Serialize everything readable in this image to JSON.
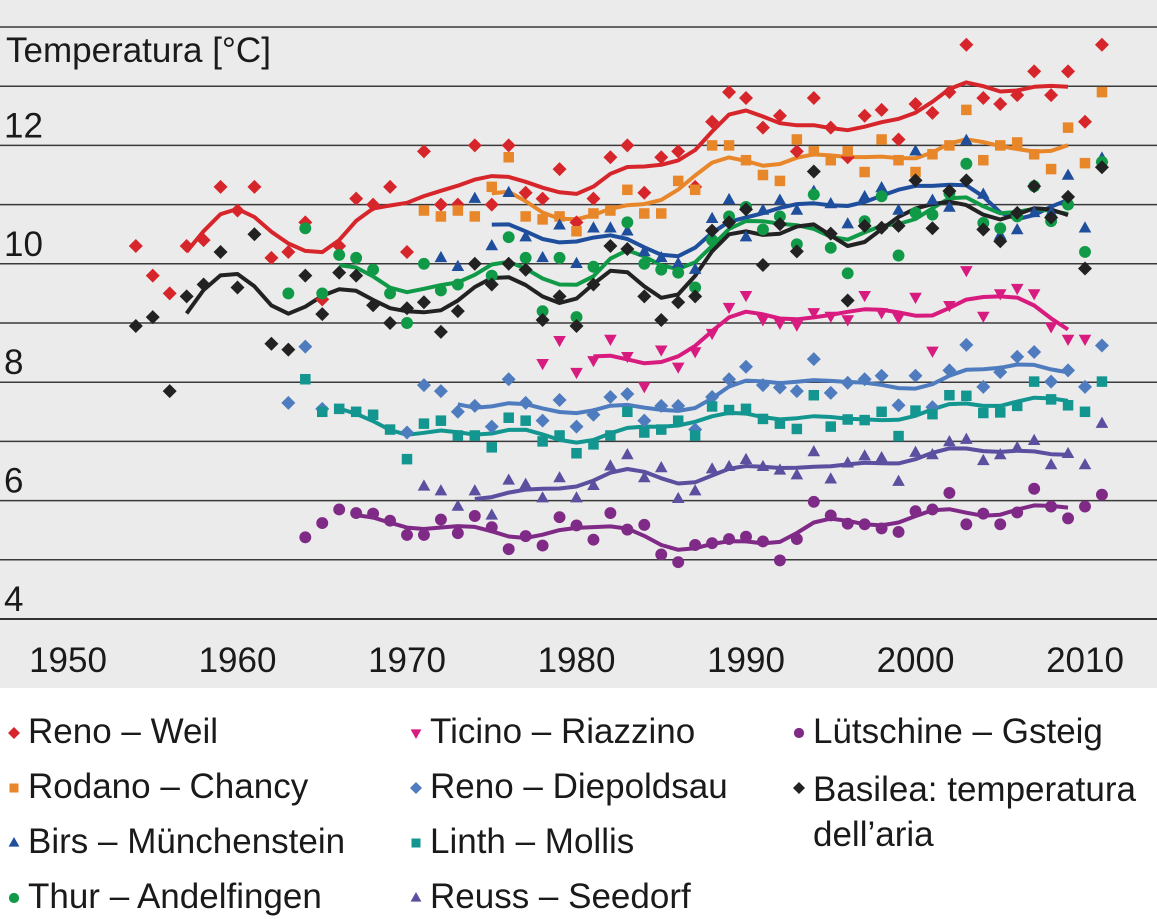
{
  "chart_data": {
    "type": "scatter",
    "ylabel": "Temperatura [°C]",
    "xlim": [
      1946,
      2014
    ],
    "ylim": [
      3.6,
      14.4
    ],
    "x_ticks": [
      1950,
      1960,
      1970,
      1980,
      1990,
      2000,
      2010
    ],
    "y_ticks": [
      4,
      6,
      8,
      10,
      12
    ],
    "grid": "horizontal every 1 °C",
    "legend_placement": "bottom",
    "background": "#ebebeb",
    "series": [
      {
        "name": "Reno – Weil",
        "color": "#d7262b",
        "marker": "diamond",
        "start": 1954,
        "trend": [
          1957,
          2009
        ],
        "values": [
          10.3,
          9.8,
          9.5,
          10.3,
          10.4,
          11.3,
          10.9,
          11.3,
          10.1,
          10.2,
          10.7,
          9.4,
          10.3,
          11.1,
          11.0,
          11.3,
          10.2,
          11.9,
          11.0,
          11.0,
          12.0,
          11.0,
          12.0,
          11.2,
          11.1,
          11.6,
          10.7,
          11.1,
          11.8,
          12.0,
          11.2,
          11.8,
          11.9,
          11.3,
          12.4,
          12.9,
          12.8,
          12.3,
          12.5,
          11.9,
          12.8,
          12.3,
          11.8,
          12.5,
          12.6,
          12.1,
          12.7,
          12.55,
          12.9,
          13.7,
          12.8,
          12.7,
          12.85,
          13.25,
          12.85,
          13.25,
          12.4,
          13.7
        ]
      },
      {
        "name": "Rodano – Chancy",
        "color": "#e8862a",
        "marker": "square",
        "start": 1971,
        "trend": [
          1975,
          2009
        ],
        "values": [
          10.9,
          10.8,
          10.9,
          10.8,
          11.3,
          11.8,
          10.8,
          10.75,
          10.8,
          10.55,
          10.85,
          10.9,
          11.25,
          10.85,
          10.85,
          11.4,
          11.25,
          12.0,
          12.0,
          11.75,
          11.5,
          11.4,
          12.1,
          11.9,
          11.75,
          11.9,
          11.55,
          12.1,
          11.75,
          11.55,
          11.85,
          12.0,
          12.6,
          11.75,
          12.0,
          12.05,
          11.85,
          11.6,
          12.3,
          11.7,
          12.9
        ]
      },
      {
        "name": "Birs – Münchenstein",
        "color": "#1f4e9c",
        "marker": "triangle-up",
        "start": 1972,
        "trend": [
          1975,
          2009
        ],
        "values": [
          10.1,
          9.95,
          11.1,
          10.3,
          11.2,
          10.45,
          10.1,
          10.65,
          10.0,
          10.6,
          10.6,
          10.55,
          10.2,
          10.1,
          10.0,
          9.9,
          10.76,
          11.08,
          10.45,
          10.9,
          11.07,
          10.9,
          11.22,
          11.01,
          10.67,
          11.13,
          11.28,
          10.9,
          11.9,
          11.07,
          10.95,
          12.08,
          11.17,
          10.48,
          10.57,
          10.86,
          10.86,
          11.49,
          10.6,
          11.78
        ]
      },
      {
        "name": "Thur – Andelfingen",
        "color": "#109a48",
        "marker": "circle",
        "start": 1963,
        "trend": [
          1966,
          2009
        ],
        "values": [
          9.5,
          10.6,
          9.5,
          10.15,
          10.1,
          9.9,
          9.5,
          9.0,
          10.0,
          9.55,
          9.65,
          null,
          9.8,
          10.45,
          10.1,
          9.2,
          10.1,
          9.1,
          9.95,
          null,
          10.7,
          10.0,
          9.9,
          9.85,
          9.6,
          10.4,
          10.8,
          10.96,
          10.58,
          10.8,
          10.33,
          11.17,
          10.27,
          9.84,
          10.72,
          11.14,
          10.14,
          10.86,
          10.83,
          11.19,
          11.69,
          10.69,
          10.6,
          10.8,
          11.31,
          10.72,
          11.0,
          10.2,
          11.72
        ]
      },
      {
        "name": "Ticino – Riazzino",
        "color": "#d81b7e",
        "marker": "triangle-down",
        "start": 1978,
        "trend": [
          1981,
          2009
        ],
        "values": [
          8.32,
          8.71,
          8.17,
          8.37,
          8.73,
          8.44,
          7.93,
          8.55,
          8.26,
          8.52,
          8.83,
          9.27,
          9.47,
          9.06,
          9.0,
          8.97,
          9.18,
          9.12,
          9.06,
          9.47,
          9.18,
          9.09,
          9.44,
          8.53,
          9.3,
          9.89,
          9.12,
          9.5,
          9.59,
          9.5,
          8.94,
          8.73,
          8.73
        ]
      },
      {
        "name": "Reno – Diepoldsau",
        "color": "#4f7cbf",
        "marker": "diamond",
        "start": 1963,
        "trend": [
          1973,
          2009
        ],
        "values": [
          7.65,
          8.6,
          7.55,
          null,
          null,
          null,
          null,
          7.15,
          7.95,
          7.85,
          7.5,
          7.6,
          7.25,
          8.05,
          7.65,
          7.35,
          7.7,
          7.25,
          7.45,
          7.75,
          7.8,
          7.35,
          7.6,
          7.6,
          7.2,
          7.75,
          8.05,
          8.26,
          7.95,
          7.91,
          7.85,
          8.39,
          7.82,
          7.99,
          8.05,
          8.11,
          7.61,
          8.11,
          7.58,
          8.2,
          8.63,
          7.92,
          8.17,
          8.43,
          8.51,
          8.01,
          8.2,
          7.92,
          8.62
        ]
      },
      {
        "name": "Linth – Mollis",
        "color": "#13968f",
        "marker": "square",
        "start": 1964,
        "trend": [
          1966,
          2009
        ],
        "values": [
          8.05,
          7.5,
          7.55,
          7.5,
          7.45,
          7.2,
          6.7,
          7.3,
          7.35,
          7.1,
          7.1,
          6.9,
          7.4,
          7.35,
          7.0,
          7.1,
          6.8,
          6.95,
          7.1,
          7.5,
          7.15,
          7.2,
          7.35,
          7.1,
          7.59,
          7.53,
          7.55,
          7.38,
          7.3,
          7.21,
          7.78,
          7.25,
          7.37,
          7.36,
          7.5,
          7.09,
          7.52,
          7.46,
          7.78,
          7.77,
          7.48,
          7.49,
          7.6,
          8.01,
          7.71,
          7.61,
          7.5,
          8.01
        ]
      },
      {
        "name": "Reuss – Seedorf",
        "color": "#5b4fa0",
        "marker": "triangle-up",
        "start": 1971,
        "trend": [
          1974,
          2009
        ],
        "values": [
          6.24,
          6.16,
          5.9,
          6.16,
          5.75,
          6.34,
          6.27,
          6.04,
          6.38,
          6.04,
          6.25,
          6.58,
          6.77,
          6.38,
          6.55,
          6.03,
          6.16,
          6.53,
          6.57,
          6.69,
          6.57,
          6.51,
          6.43,
          6.82,
          6.36,
          6.63,
          6.75,
          6.72,
          6.32,
          6.81,
          6.77,
          6.99,
          7.03,
          6.67,
          6.77,
          6.89,
          7.01,
          6.6,
          6.79,
          6.6,
          7.3
        ]
      },
      {
        "name": "Lütschine – Gsteig",
        "color": "#7f2a86",
        "marker": "circle",
        "start": 1964,
        "trend": [
          1967,
          2009
        ],
        "values": [
          5.38,
          5.62,
          5.85,
          5.79,
          5.78,
          5.66,
          5.42,
          5.42,
          5.68,
          5.45,
          5.74,
          5.55,
          5.18,
          5.4,
          5.24,
          5.72,
          5.58,
          5.34,
          5.79,
          5.51,
          5.59,
          5.09,
          4.96,
          5.25,
          5.28,
          5.35,
          5.39,
          5.31,
          4.99,
          5.35,
          5.98,
          5.75,
          5.61,
          5.6,
          5.53,
          5.47,
          5.82,
          5.85,
          6.13,
          5.6,
          5.78,
          5.6,
          5.8,
          6.2,
          5.9,
          5.7,
          5.9,
          6.1
        ]
      },
      {
        "name": "Basilea: temperatura",
        "name_line2": "dell’aria",
        "color": "#222222",
        "marker": "diamond",
        "start": 1954,
        "trend": [
          1957,
          2009
        ],
        "values": [
          8.95,
          9.1,
          7.85,
          9.45,
          9.65,
          10.2,
          9.6,
          10.5,
          8.65,
          8.55,
          9.8,
          9.15,
          9.85,
          9.8,
          9.3,
          9.0,
          9.25,
          9.35,
          8.85,
          9.2,
          10.0,
          9.65,
          10.0,
          9.9,
          9.05,
          9.45,
          8.95,
          9.65,
          10.3,
          10.25,
          9.45,
          9.05,
          9.35,
          9.45,
          10.56,
          10.7,
          10.92,
          9.98,
          10.67,
          10.21,
          11.56,
          10.51,
          9.38,
          10.64,
          10.61,
          10.64,
          11.41,
          10.6,
          11.23,
          11.41,
          10.58,
          10.38,
          10.86,
          11.31,
          10.78,
          11.13,
          9.92,
          11.63
        ]
      }
    ]
  }
}
